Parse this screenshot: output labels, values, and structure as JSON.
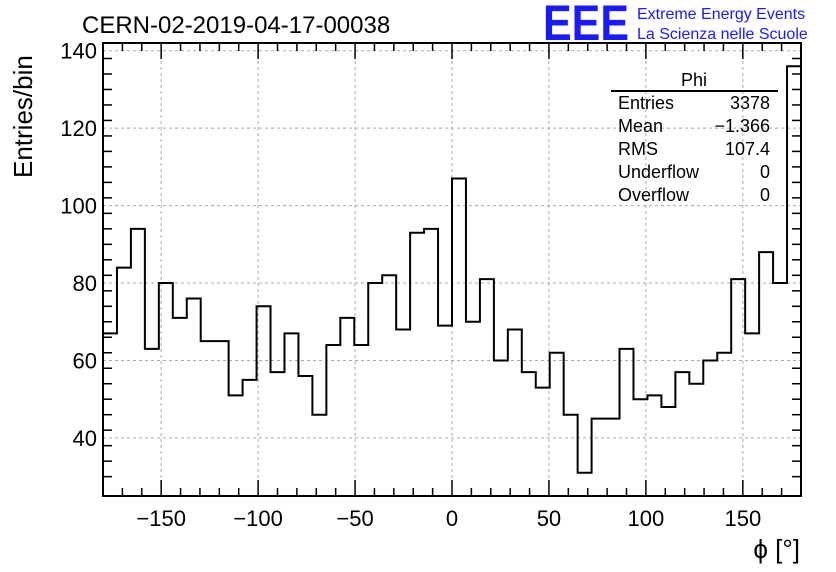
{
  "chart_data": {
    "type": "histogram",
    "title": "CERN-02-2019-04-17-00038",
    "xlabel": "ϕ [°]",
    "ylabel": "Entries/bin",
    "xlim": [
      -180,
      180
    ],
    "ylim": [
      25,
      142
    ],
    "xticks": [
      -150,
      -100,
      -50,
      0,
      50,
      100,
      150
    ],
    "yticks": [
      40,
      60,
      80,
      100,
      120,
      140
    ],
    "grid": true,
    "bin_width": 7.2,
    "counts": [
      67,
      84,
      94,
      63,
      80,
      71,
      76,
      65,
      65,
      51,
      55,
      74,
      57,
      67,
      56,
      46,
      64,
      71,
      64,
      80,
      82,
      68,
      93,
      94,
      69,
      107,
      70,
      81,
      60,
      68,
      57,
      53,
      62,
      46,
      31,
      45,
      45,
      63,
      50,
      51,
      48,
      57,
      54,
      60,
      62,
      81,
      67,
      88,
      80,
      136
    ],
    "stats_box": {
      "title": "Phi",
      "rows": [
        {
          "label": "Entries",
          "value": "3378"
        },
        {
          "label": "Mean",
          "value": "−1.366"
        },
        {
          "label": "RMS",
          "value": "107.4"
        },
        {
          "label": "Underflow",
          "value": "0"
        },
        {
          "label": "Overflow",
          "value": "0"
        }
      ]
    }
  },
  "logo": {
    "mark": "EEE",
    "line1": "Extreme Energy Events",
    "line2": "La Scienza nelle Scuole",
    "color": "#1a1aff"
  }
}
